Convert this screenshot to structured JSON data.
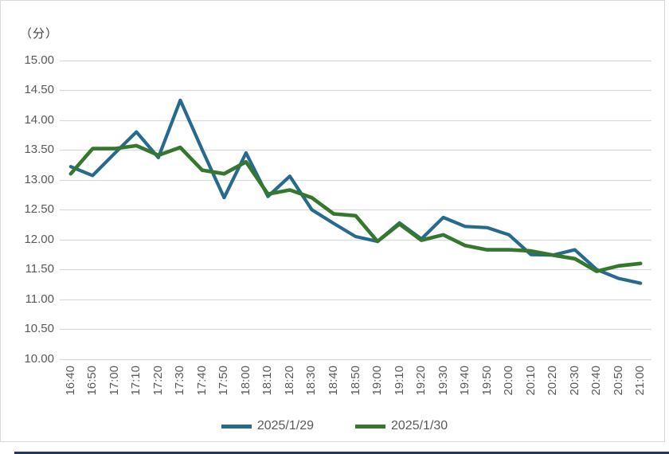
{
  "chart_data": {
    "type": "line",
    "title": "",
    "unit_label": "（分）",
    "ylabel": "（分）",
    "xlabel": "",
    "ylim": [
      10.0,
      15.0
    ],
    "y_tick_step": 0.5,
    "y_ticks": [
      "10.00",
      "10.50",
      "11.00",
      "11.50",
      "12.00",
      "12.50",
      "13.00",
      "13.50",
      "14.00",
      "14.50",
      "15.00"
    ],
    "grid": true,
    "legend_position": "bottom",
    "categories": [
      "16:40",
      "16:50",
      "17:00",
      "17:10",
      "17:20",
      "17:30",
      "17:40",
      "17:50",
      "18:00",
      "18:10",
      "18:20",
      "18:30",
      "18:40",
      "18:50",
      "19:00",
      "19:10",
      "19:20",
      "19:30",
      "19:40",
      "19:50",
      "20:00",
      "20:10",
      "20:20",
      "20:30",
      "20:40",
      "20:50",
      "21:00"
    ],
    "series": [
      {
        "name": "2025/1/29",
        "color": "#266A8E",
        "values": [
          13.22,
          13.07,
          13.44,
          13.8,
          13.37,
          14.33,
          13.5,
          12.7,
          13.45,
          12.72,
          13.06,
          12.5,
          12.27,
          12.05,
          11.97,
          12.28,
          12.01,
          12.37,
          12.22,
          12.2,
          12.08,
          11.75,
          11.74,
          11.83,
          11.5,
          11.35,
          11.27
        ]
      },
      {
        "name": "2025/1/30",
        "color": "#35772E",
        "values": [
          13.1,
          13.52,
          13.52,
          13.57,
          13.41,
          13.54,
          13.16,
          13.1,
          13.3,
          12.76,
          12.83,
          12.7,
          12.43,
          12.4,
          11.97,
          12.26,
          11.99,
          12.08,
          11.9,
          11.83,
          11.83,
          11.81,
          11.74,
          11.68,
          11.47,
          11.56,
          11.6
        ]
      }
    ]
  },
  "colors": {
    "gridline": "#D9D9D9",
    "frame_border": "#D9D9D9",
    "tick_text": "#595959",
    "unit_text": "#404040",
    "legend_text": "#595959",
    "bottom_bar": "#1F3864",
    "background": "#FFFFFF"
  }
}
